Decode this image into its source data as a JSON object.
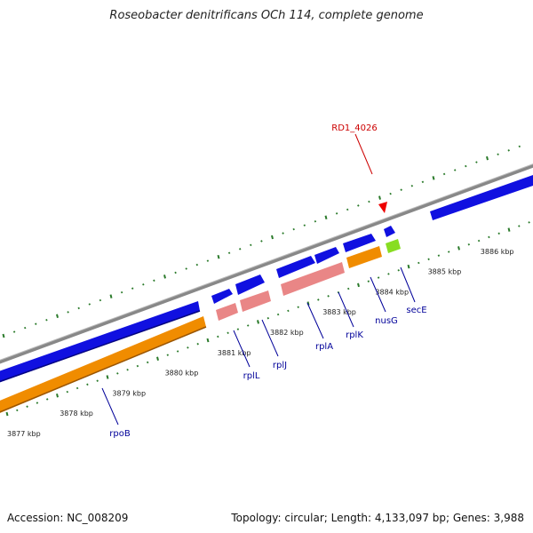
{
  "title": "Roseobacter denitrificans OCh 114, complete genome",
  "footer": {
    "accession": "Accession: NC_008209",
    "stats": "Topology: circular; Length: 4,133,097 bp; Genes: 3,988"
  },
  "highlight": {
    "label": "RD1_4026",
    "color": "#cc0000"
  },
  "colors": {
    "backbone": "#888888",
    "cds_blue": "#1010e0",
    "rrna_orange": "#f08c00",
    "pink": "#e98686",
    "green_feature": "#88dd22",
    "tick": "#2a7a2a",
    "gene_label": "#000099"
  },
  "scale": {
    "labels": [
      {
        "kbp": 3877,
        "text": "3877 kbp"
      },
      {
        "kbp": 3878,
        "text": "3878 kbp"
      },
      {
        "kbp": 3879,
        "text": "3879 kbp"
      },
      {
        "kbp": 3880,
        "text": "3880 kbp"
      },
      {
        "kbp": 3881,
        "text": "3881 kbp"
      },
      {
        "kbp": 3882,
        "text": "3882 kbp"
      },
      {
        "kbp": 3883,
        "text": "3883 kbp"
      },
      {
        "kbp": 3884,
        "text": "3884 kbp"
      },
      {
        "kbp": 3885,
        "text": "3885 kbp"
      },
      {
        "kbp": 3886,
        "text": "3886 kbp"
      }
    ]
  },
  "genes": [
    {
      "name": "rpoB"
    },
    {
      "name": "rplL"
    },
    {
      "name": "rplJ"
    },
    {
      "name": "rplA"
    },
    {
      "name": "rplK"
    },
    {
      "name": "nusG"
    },
    {
      "name": "secE"
    }
  ]
}
